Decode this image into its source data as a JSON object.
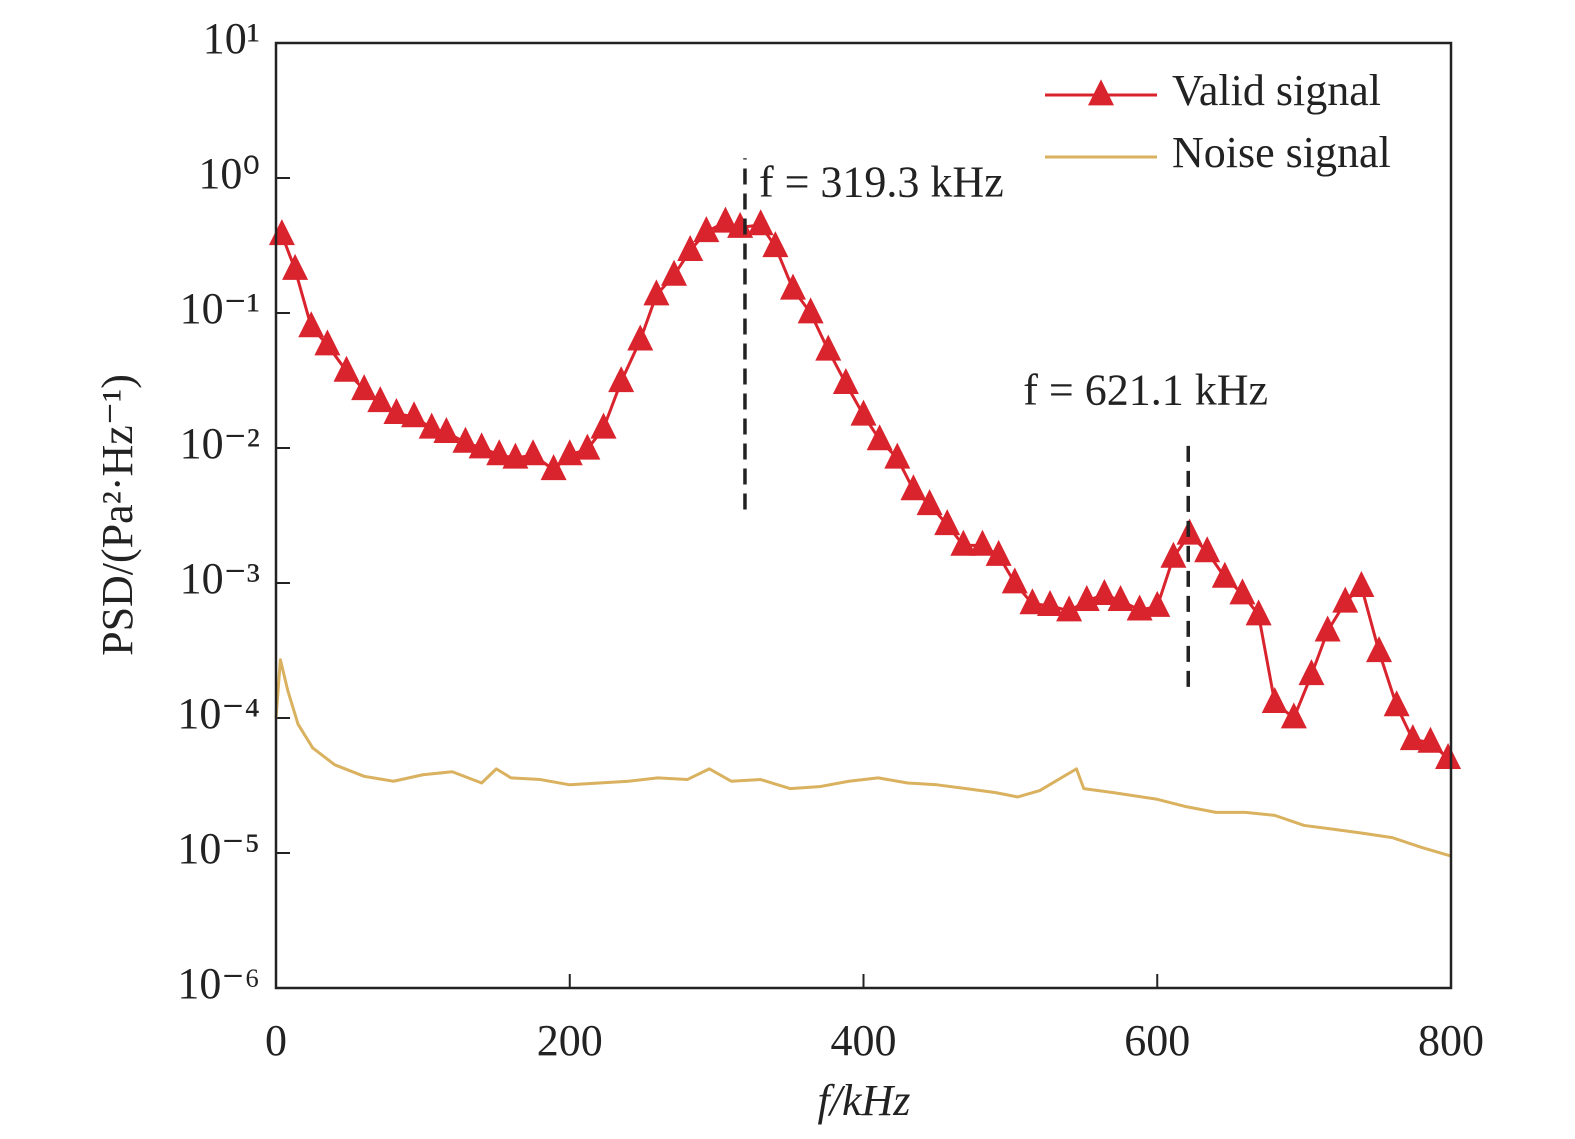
{
  "chart_data": {
    "type": "line",
    "xlabel": "f/kHz",
    "ylabel": "PSD/(Pa²·Hz⁻¹)",
    "xlim": [
      0,
      800
    ],
    "xticks": [
      0,
      200,
      400,
      600,
      800
    ],
    "ylim": [
      1e-06,
      10
    ],
    "log_y": true,
    "yticks": [
      {
        "value": 10,
        "label": "10¹"
      },
      {
        "value": 1,
        "label": "10⁰"
      },
      {
        "value": 0.1,
        "label": "10⁻¹"
      },
      {
        "value": 0.01,
        "label": "10⁻²"
      },
      {
        "value": 0.001,
        "label": "10⁻³"
      },
      {
        "value": 0.0001,
        "label": "10⁻⁴"
      },
      {
        "value": 1e-05,
        "label": "10⁻⁵"
      },
      {
        "value": 1e-06,
        "label": "10⁻⁶"
      }
    ],
    "grid": false,
    "legend": "upper right",
    "series": [
      {
        "name": "Valid signal",
        "color": "#d9232d",
        "marker": "triangle",
        "x": [
          4,
          13,
          24,
          35,
          48,
          60,
          71,
          82,
          94,
          106,
          116,
          129,
          140,
          152,
          163,
          175,
          189,
          200,
          212,
          223,
          235,
          248,
          259,
          271,
          282,
          293,
          306,
          316,
          330,
          340,
          352,
          364,
          376,
          388,
          400,
          411,
          423,
          434,
          445,
          457,
          468,
          481,
          492,
          503,
          515,
          527,
          540,
          552,
          564,
          575,
          588,
          600,
          611,
          622,
          634,
          646,
          658,
          669,
          680,
          693,
          705,
          716,
          728,
          739,
          751,
          763,
          774,
          786,
          798
        ],
        "values": [
          0.38,
          0.21,
          0.079,
          0.058,
          0.037,
          0.027,
          0.022,
          0.018,
          0.017,
          0.014,
          0.013,
          0.011,
          0.01,
          0.0089,
          0.0084,
          0.0089,
          0.0069,
          0.0089,
          0.0098,
          0.014,
          0.031,
          0.063,
          0.136,
          0.19,
          0.29,
          0.4,
          0.47,
          0.43,
          0.45,
          0.31,
          0.15,
          0.1,
          0.053,
          0.03,
          0.0175,
          0.0115,
          0.0084,
          0.0049,
          0.0038,
          0.0027,
          0.0019,
          0.0019,
          0.0016,
          0.001,
          0.0007,
          0.00068,
          0.00062,
          0.00074,
          0.00082,
          0.00074,
          0.00063,
          0.00067,
          0.00155,
          0.0023,
          0.0017,
          0.0011,
          0.00083,
          0.00058,
          0.00013,
          0.0001,
          0.000209,
          0.00044,
          0.00072,
          0.00094,
          0.00031,
          0.000123,
          6.9e-05,
          6.6e-05,
          5e-05
        ]
      },
      {
        "name": "Noise signal",
        "color": "#d9b15f",
        "marker": "none",
        "x": [
          0,
          3,
          8,
          15,
          25,
          40,
          60,
          80,
          100,
          120,
          140,
          150,
          160,
          180,
          200,
          220,
          240,
          260,
          280,
          295,
          310,
          330,
          350,
          370,
          390,
          410,
          430,
          450,
          470,
          490,
          505,
          520,
          545,
          550,
          570,
          600,
          620,
          640,
          660,
          680,
          700,
          720,
          740,
          760,
          780,
          800
        ],
        "values": [
          0.0001,
          0.00027,
          0.00016,
          9e-05,
          6e-05,
          4.5e-05,
          3.7e-05,
          3.4e-05,
          3.8e-05,
          4e-05,
          3.3e-05,
          4.2e-05,
          3.6e-05,
          3.5e-05,
          3.2e-05,
          3.3e-05,
          3.4e-05,
          3.6e-05,
          3.5e-05,
          4.2e-05,
          3.4e-05,
          3.5e-05,
          3e-05,
          3.1e-05,
          3.4e-05,
          3.6e-05,
          3.3e-05,
          3.2e-05,
          3e-05,
          2.8e-05,
          2.6e-05,
          2.9e-05,
          4.2e-05,
          3e-05,
          2.8e-05,
          2.5e-05,
          2.2e-05,
          2e-05,
          2e-05,
          1.9e-05,
          1.6e-05,
          1.5e-05,
          1.4e-05,
          1.3e-05,
          1.1e-05,
          9.5e-06
        ]
      }
    ],
    "annotations": [
      {
        "text": "f = 319.3 kHz",
        "x": 319.3,
        "y": [
          0.0035,
          1.4
        ]
      },
      {
        "text": "f = 621.1 kHz",
        "x": 621.1,
        "y": [
          0.00017,
          0.0106
        ]
      }
    ]
  }
}
